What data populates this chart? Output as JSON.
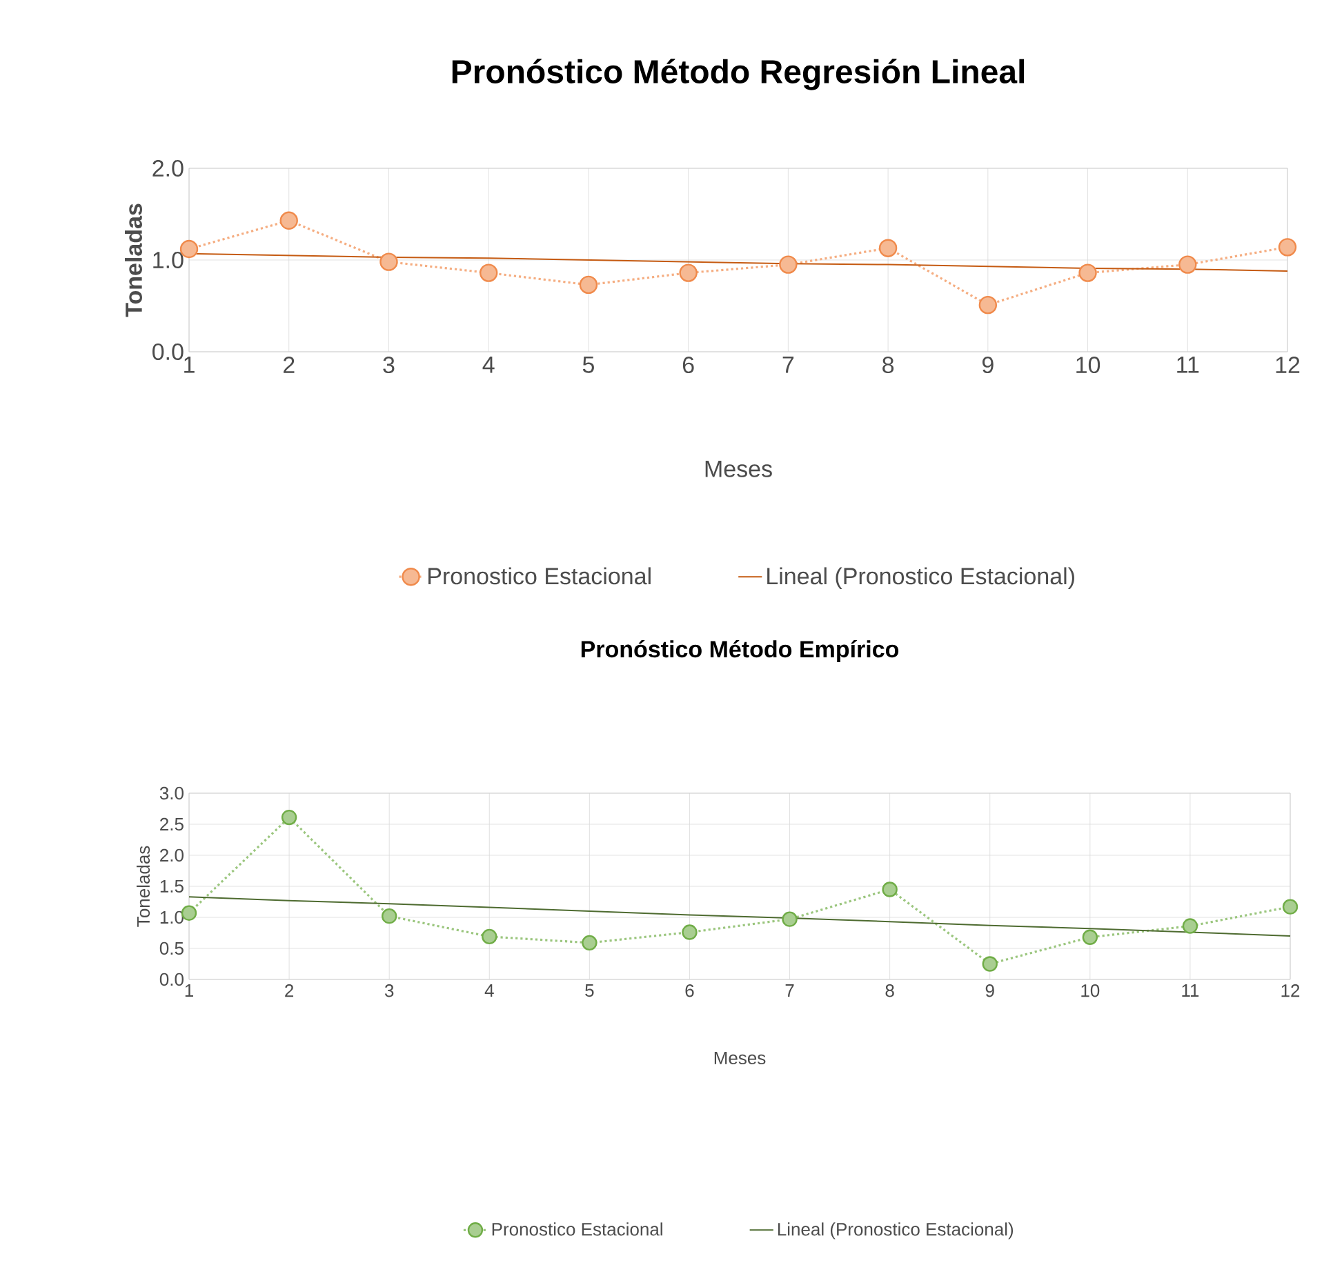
{
  "chart_data": [
    {
      "type": "line",
      "title": "Pronóstico  Método Regresión Lineal",
      "xlabel": "Meses",
      "ylabel": "Toneladas",
      "x": [
        1,
        2,
        3,
        4,
        5,
        6,
        7,
        8,
        9,
        10,
        11,
        12
      ],
      "xlim": [
        1,
        12
      ],
      "xticks": [
        1,
        2,
        3,
        4,
        5,
        6,
        7,
        8,
        9,
        10,
        11,
        12
      ],
      "ylim": [
        0,
        2
      ],
      "yticks": [
        {
          "value": 0,
          "label": "0.0"
        },
        {
          "value": 1,
          "label": "1.0"
        },
        {
          "value": 2,
          "label": "2.0"
        }
      ],
      "grid": true,
      "legend": "bottom",
      "series": [
        {
          "name": "Pronostico  Estacional",
          "color": "#f08a4b",
          "marker": "circle",
          "line_style": "dotted",
          "values": [
            1.12,
            1.43,
            0.98,
            0.86,
            0.73,
            0.86,
            0.95,
            1.13,
            0.51,
            0.86,
            0.95,
            1.14
          ]
        },
        {
          "name": "Lineal (Pronostico  Estacional)",
          "type": "line",
          "color": "#c55a11",
          "marker": "none",
          "line_style": "solid",
          "values": [
            1.07,
            1.05,
            1.03,
            1.02,
            1.0,
            0.98,
            0.96,
            0.95,
            0.93,
            0.91,
            0.9,
            0.88
          ]
        }
      ]
    },
    {
      "type": "line",
      "title": "Pronóstico  Método  Empírico",
      "xlabel": "Meses",
      "ylabel": "Toneladas",
      "x": [
        1,
        2,
        3,
        4,
        5,
        6,
        7,
        8,
        9,
        10,
        11,
        12
      ],
      "xlim": [
        1,
        12
      ],
      "xticks": [
        1,
        2,
        3,
        4,
        5,
        6,
        7,
        8,
        9,
        10,
        11,
        12
      ],
      "ylim": [
        0,
        3
      ],
      "yticks": [
        {
          "value": 0,
          "label": "0.0"
        },
        {
          "value": 0.5,
          "label": "0.5"
        },
        {
          "value": 1,
          "label": "1.0"
        },
        {
          "value": 1.5,
          "label": "1.5"
        },
        {
          "value": 2,
          "label": "2.0"
        },
        {
          "value": 2.5,
          "label": "2.5"
        },
        {
          "value": 3,
          "label": "3.0"
        }
      ],
      "grid": true,
      "legend": "bottom",
      "series": [
        {
          "name": "Pronostico  Estacional",
          "color": "#70ad47",
          "marker": "circle",
          "line_style": "dotted",
          "values": [
            1.07,
            2.61,
            1.02,
            0.69,
            0.59,
            0.76,
            0.97,
            1.45,
            0.25,
            0.68,
            0.86,
            1.17
          ]
        },
        {
          "name": "Lineal (Pronostico  Estacional)",
          "type": "line",
          "color": "#4e6b30",
          "marker": "none",
          "line_style": "solid",
          "values": [
            1.33,
            1.27,
            1.22,
            1.16,
            1.1,
            1.04,
            0.99,
            0.93,
            0.87,
            0.82,
            0.76,
            0.7
          ]
        }
      ]
    }
  ]
}
